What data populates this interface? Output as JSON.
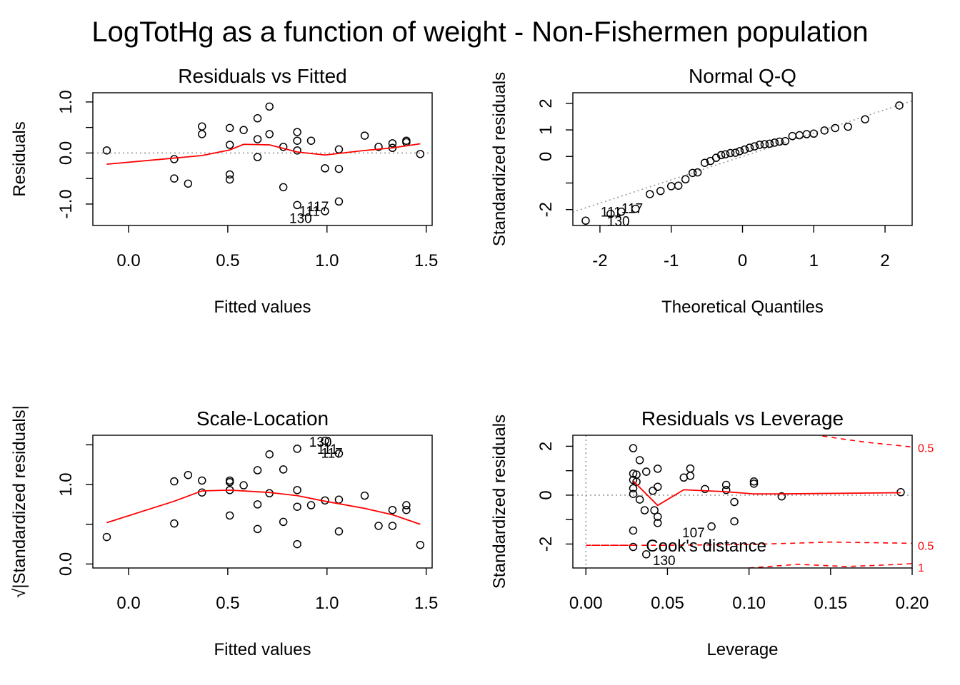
{
  "figure": {
    "title": "LogTotHg as a function of weight - Non-Fishermen population"
  },
  "chart_data": [
    {
      "type": "scatter",
      "title": "Residuals vs Fitted",
      "xlabel": "Fitted values",
      "ylabel": "Residuals",
      "xlim": [
        -0.18,
        1.53
      ],
      "ylim": [
        -1.42,
        1.18
      ],
      "xticks": [
        0.0,
        0.5,
        1.0,
        1.5
      ],
      "xticklabels": [
        "0.0",
        "0.5",
        "1.0",
        "1.5"
      ],
      "yticks": [
        -1.0,
        0.0,
        1.0
      ],
      "yticklabels": [
        "-1.0",
        "0.0",
        "1.0"
      ],
      "yticks_minor": [
        -0.5,
        0.5
      ],
      "yaxis_labels_vertical": true,
      "refline": {
        "type": "h",
        "value": 0,
        "color": "#999999",
        "dash": true
      },
      "points": [
        [
          -0.11,
          0.05
        ],
        [
          0.23,
          -0.12
        ],
        [
          0.23,
          -0.5
        ],
        [
          0.3,
          -0.6
        ],
        [
          0.37,
          0.52
        ],
        [
          0.37,
          0.37
        ],
        [
          0.51,
          0.49
        ],
        [
          0.51,
          0.16
        ],
        [
          0.51,
          -0.42
        ],
        [
          0.51,
          -0.52
        ],
        [
          0.58,
          0.45
        ],
        [
          0.65,
          0.68
        ],
        [
          0.65,
          0.27
        ],
        [
          0.65,
          -0.08
        ],
        [
          0.71,
          0.91
        ],
        [
          0.71,
          0.37
        ],
        [
          0.78,
          0.12
        ],
        [
          0.78,
          -0.67
        ],
        [
          0.85,
          0.41
        ],
        [
          0.85,
          0.24
        ],
        [
          0.85,
          0.05
        ],
        [
          0.85,
          -1.02
        ],
        [
          0.92,
          0.24
        ],
        [
          0.99,
          -0.3
        ],
        [
          0.99,
          -1.14
        ],
        [
          1.06,
          0.07
        ],
        [
          1.06,
          -0.31
        ],
        [
          1.06,
          -0.95
        ],
        [
          1.19,
          0.34
        ],
        [
          1.26,
          0.12
        ],
        [
          1.33,
          0.19
        ],
        [
          1.33,
          0.1
        ],
        [
          1.4,
          0.24
        ],
        [
          1.4,
          0.21
        ],
        [
          1.47,
          -0.02
        ]
      ],
      "smooth": {
        "color": "#ff0000",
        "x": [
          -0.11,
          0.23,
          0.37,
          0.51,
          0.58,
          0.71,
          0.85,
          0.99,
          1.19,
          1.33,
          1.47
        ],
        "y": [
          -0.22,
          -0.1,
          -0.05,
          0.06,
          0.17,
          0.16,
          0.02,
          -0.04,
          0.05,
          0.1,
          0.18
        ]
      },
      "labels": [
        {
          "text": "117",
          "x": 0.9,
          "y": -1.04
        },
        {
          "text": "111",
          "x": 0.86,
          "y": -1.13
        },
        {
          "text": "130",
          "x": 0.81,
          "y": -1.27
        }
      ]
    },
    {
      "type": "scatter",
      "title": "Normal Q-Q",
      "xlabel": "Theoretical Quantiles",
      "ylabel": "Standardized residuals",
      "xlim": [
        -2.38,
        2.38
      ],
      "ylim": [
        -2.6,
        2.4
      ],
      "xticks": [
        -2,
        -1,
        0,
        1,
        2
      ],
      "xticklabels": [
        "-2",
        "-1",
        "0",
        "1",
        "2"
      ],
      "yticks": [
        -2,
        0,
        1,
        2
      ],
      "yticklabels": [
        "-2",
        "0",
        "1",
        "2"
      ],
      "yticks_minor": [
        -1
      ],
      "yaxis_labels_vertical": true,
      "refline": {
        "type": "abline",
        "x1": -2.5,
        "y1": -2.2,
        "x2": 2.5,
        "y2": 2.2,
        "color": "#999999",
        "dash": true
      },
      "points": [
        [
          -2.2,
          -2.42
        ],
        [
          -1.85,
          -2.16
        ],
        [
          -1.7,
          -2.08
        ],
        [
          -1.5,
          -1.97
        ],
        [
          -1.3,
          -1.42
        ],
        [
          -1.15,
          -1.3
        ],
        [
          -1.0,
          -1.12
        ],
        [
          -0.9,
          -1.1
        ],
        [
          -0.8,
          -0.86
        ],
        [
          -0.7,
          -0.62
        ],
        [
          -0.63,
          -0.6
        ],
        [
          -0.53,
          -0.24
        ],
        [
          -0.45,
          -0.17
        ],
        [
          -0.37,
          -0.05
        ],
        [
          -0.3,
          0.05
        ],
        [
          -0.24,
          0.08
        ],
        [
          -0.17,
          0.13
        ],
        [
          -0.1,
          0.14
        ],
        [
          -0.04,
          0.2
        ],
        [
          0.03,
          0.26
        ],
        [
          0.1,
          0.33
        ],
        [
          0.17,
          0.38
        ],
        [
          0.24,
          0.44
        ],
        [
          0.31,
          0.46
        ],
        [
          0.38,
          0.48
        ],
        [
          0.45,
          0.52
        ],
        [
          0.52,
          0.56
        ],
        [
          0.6,
          0.58
        ],
        [
          0.7,
          0.77
        ],
        [
          0.8,
          0.8
        ],
        [
          0.9,
          0.84
        ],
        [
          1.0,
          0.86
        ],
        [
          1.15,
          0.98
        ],
        [
          1.3,
          1.07
        ],
        [
          1.48,
          1.12
        ],
        [
          1.72,
          1.4
        ],
        [
          2.2,
          1.92
        ]
      ],
      "labels": [
        {
          "text": "111",
          "x": -1.99,
          "y": -2.08
        },
        {
          "text": "117",
          "x": -1.7,
          "y": -1.94
        },
        {
          "text": "130",
          "x": -1.9,
          "y": -2.42
        }
      ]
    },
    {
      "type": "scatter",
      "title": "Scale-Location",
      "xlabel": "Fitted values",
      "ylabel": "√|Standardized residuals|",
      "xlim": [
        -0.18,
        1.53
      ],
      "ylim": [
        -0.05,
        1.62
      ],
      "xticks": [
        0.0,
        0.5,
        1.0,
        1.5
      ],
      "xticklabels": [
        "0.0",
        "0.5",
        "1.0",
        "1.5"
      ],
      "yticks": [
        0.0,
        1.0
      ],
      "yticklabels": [
        "0.0",
        "1.0"
      ],
      "yticks_minor": [
        0.5,
        1.5
      ],
      "yaxis_labels_vertical": true,
      "points": [
        [
          -0.11,
          0.34
        ],
        [
          0.23,
          1.04
        ],
        [
          0.23,
          0.51
        ],
        [
          0.3,
          1.12
        ],
        [
          0.37,
          1.05
        ],
        [
          0.37,
          0.9
        ],
        [
          0.51,
          1.05
        ],
        [
          0.51,
          1.03
        ],
        [
          0.51,
          0.93
        ],
        [
          0.51,
          0.61
        ],
        [
          0.58,
          0.99
        ],
        [
          0.65,
          1.18
        ],
        [
          0.65,
          0.75
        ],
        [
          0.65,
          0.44
        ],
        [
          0.71,
          1.38
        ],
        [
          0.71,
          0.89
        ],
        [
          0.78,
          1.19
        ],
        [
          0.78,
          0.53
        ],
        [
          0.85,
          1.45
        ],
        [
          0.85,
          0.93
        ],
        [
          0.85,
          0.72
        ],
        [
          0.85,
          0.25
        ],
        [
          0.92,
          0.74
        ],
        [
          0.99,
          1.55
        ],
        [
          0.99,
          0.8
        ],
        [
          1.06,
          1.39
        ],
        [
          1.06,
          0.81
        ],
        [
          1.06,
          0.41
        ],
        [
          1.19,
          0.86
        ],
        [
          1.26,
          0.48
        ],
        [
          1.33,
          0.68
        ],
        [
          1.33,
          0.48
        ],
        [
          1.4,
          0.74
        ],
        [
          1.4,
          0.68
        ],
        [
          1.47,
          0.24
        ]
      ],
      "smooth": {
        "color": "#ff0000",
        "x": [
          -0.11,
          0.23,
          0.37,
          0.51,
          0.71,
          0.85,
          0.99,
          1.19,
          1.33,
          1.47
        ],
        "y": [
          0.52,
          0.79,
          0.92,
          0.93,
          0.9,
          0.86,
          0.79,
          0.7,
          0.62,
          0.5
        ]
      },
      "labels": [
        {
          "text": "130",
          "x": 0.91,
          "y": 1.54
        },
        {
          "text": "111",
          "x": 0.95,
          "y": 1.45
        },
        {
          "text": "117",
          "x": 0.97,
          "y": 1.4
        }
      ]
    },
    {
      "type": "scatter",
      "title": "Residuals vs Leverage",
      "xlabel": "Leverage",
      "ylabel": "Standardized residuals",
      "xlim": [
        -0.008,
        0.2
      ],
      "ylim": [
        -2.98,
        2.45
      ],
      "xticks": [
        0.0,
        0.05,
        0.1,
        0.15,
        0.2
      ],
      "xticklabels": [
        "0.00",
        "0.05",
        "0.10",
        "0.15",
        "0.20"
      ],
      "yticks": [
        -2,
        0,
        2
      ],
      "yticklabels": [
        "-2",
        "0",
        "2"
      ],
      "yticks_minor": [
        -1,
        1
      ],
      "yaxis_labels_vertical": true,
      "refline_h": {
        "value": 0,
        "color": "#999999",
        "dash": true
      },
      "refline_v": {
        "value": 0,
        "color": "#999999",
        "dash": true
      },
      "points": [
        [
          0.029,
          1.92
        ],
        [
          0.029,
          0.88
        ],
        [
          0.029,
          0.62
        ],
        [
          0.029,
          0.28
        ],
        [
          0.029,
          0.05
        ],
        [
          0.029,
          -1.45
        ],
        [
          0.029,
          -2.12
        ],
        [
          0.031,
          0.84
        ],
        [
          0.031,
          0.55
        ],
        [
          0.033,
          1.43
        ],
        [
          0.033,
          -0.18
        ],
        [
          0.036,
          -0.62
        ],
        [
          0.037,
          0.96
        ],
        [
          0.037,
          -2.42
        ],
        [
          0.041,
          0.18
        ],
        [
          0.042,
          -0.62
        ],
        [
          0.044,
          1.08
        ],
        [
          0.044,
          0.34
        ],
        [
          0.044,
          -0.88
        ],
        [
          0.044,
          -1.14
        ],
        [
          0.06,
          0.72
        ],
        [
          0.064,
          1.09
        ],
        [
          0.064,
          0.79
        ],
        [
          0.073,
          0.25
        ],
        [
          0.077,
          -1.28
        ],
        [
          0.086,
          0.42
        ],
        [
          0.086,
          0.21
        ],
        [
          0.091,
          -0.28
        ],
        [
          0.091,
          -1.07
        ],
        [
          0.103,
          0.56
        ],
        [
          0.103,
          0.47
        ],
        [
          0.12,
          -0.05
        ],
        [
          0.193,
          0.12
        ]
      ],
      "smooth": {
        "color": "#ff0000",
        "x": [
          0.029,
          0.044,
          0.06,
          0.086,
          0.103,
          0.12,
          0.193
        ],
        "y": [
          0.58,
          -0.42,
          0.22,
          0.14,
          0.05,
          0.05,
          0.1
        ]
      },
      "cook_curves": [
        {
          "x": [
            0.145,
            0.16,
            0.175,
            0.19,
            0.2
          ],
          "y": [
            2.42,
            2.27,
            2.14,
            2.04,
            1.97
          ],
          "label": "0.5",
          "label_y": 1.94
        },
        {
          "x": [
            0.0,
            0.05,
            0.1,
            0.15,
            0.2
          ],
          "y": [
            -2.05,
            -2.05,
            -2.02,
            -1.92,
            -1.97
          ],
          "label": "0.5",
          "label_y": -2.06
        },
        {
          "x": [
            0.1,
            0.13,
            0.16,
            0.19,
            0.2
          ],
          "y": [
            -2.98,
            -2.83,
            -2.92,
            -2.84,
            -2.8
          ],
          "label": "1",
          "label_y": -2.95
        }
      ],
      "legend": {
        "text": "Cook's distance",
        "x": 0.0,
        "y": -2.05
      },
      "labels": [
        {
          "text": "107",
          "x": 0.059,
          "y": -1.52
        },
        {
          "text": "130",
          "x": 0.041,
          "y": -2.66
        }
      ]
    }
  ]
}
